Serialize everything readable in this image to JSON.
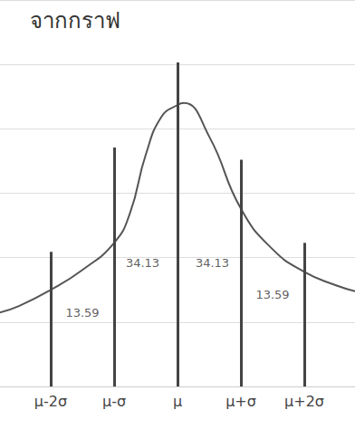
{
  "chart_data": {
    "type": "line",
    "title": "จากกราฟ",
    "x": [
      -2.8,
      -2.5,
      -2.0,
      -1.5,
      -1.0,
      -0.75,
      -0.5,
      -0.25,
      0,
      0.1,
      0.5,
      1.0,
      1.5,
      2.0,
      2.5,
      2.8
    ],
    "values": [
      1.15,
      1.25,
      1.5,
      1.81,
      2.23,
      2.69,
      3.6,
      4.19,
      4.37,
      4.4,
      3.88,
      2.76,
      2.13,
      1.78,
      1.57,
      1.48
    ],
    "color": "#555555",
    "xlim": [
      -2.8,
      2.8
    ],
    "xticks": [
      {
        "value": -2,
        "label": "μ-2σ"
      },
      {
        "value": -1,
        "label": "μ-σ"
      },
      {
        "value": 0,
        "label": "μ"
      },
      {
        "value": 1,
        "label": "μ+σ"
      },
      {
        "value": 2,
        "label": "μ+2σ"
      }
    ],
    "ylim": [
      0,
      6
    ],
    "yticks": [
      0,
      1,
      2,
      3,
      4,
      5,
      6
    ],
    "grid": true,
    "tick_labels": "x",
    "vlines": [
      {
        "x": -2,
        "y": 2.09
      },
      {
        "x": -1,
        "y": 3.71
      },
      {
        "x": 0,
        "y": 5.03
      },
      {
        "x": 1,
        "y": 3.52
      },
      {
        "x": 2,
        "y": 2.23
      }
    ],
    "annotations": [
      {
        "text": "13.59",
        "x": -1.5,
        "y": 1.15
      },
      {
        "text": "34.13",
        "x": -0.55,
        "y": 1.92
      },
      {
        "text": "34.13",
        "x": 0.55,
        "y": 1.92
      },
      {
        "text": "13.59",
        "x": 1.5,
        "y": 1.43
      }
    ]
  }
}
